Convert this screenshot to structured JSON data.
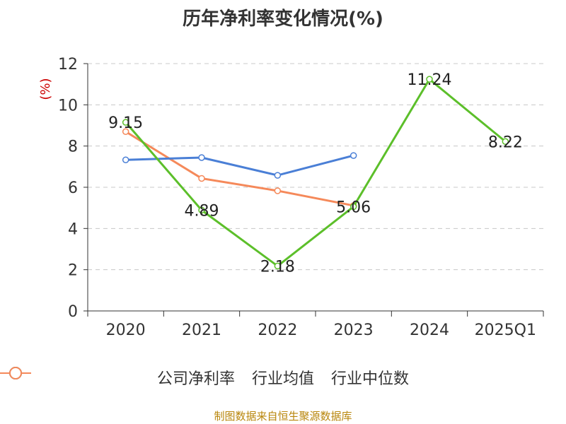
{
  "chart_data": {
    "type": "line",
    "title": "历年净利率变化情况(%)",
    "ylabel": "(%)",
    "xlabel": "",
    "categories": [
      "2020",
      "2021",
      "2022",
      "2023",
      "2024",
      "2025Q1"
    ],
    "ylim": [
      0,
      12
    ],
    "yticks": [
      0,
      2,
      4,
      6,
      8,
      10,
      12
    ],
    "grid": true,
    "legend_position": "bottom",
    "series": [
      {
        "name": "公司净利率",
        "color": "#5cbf2a",
        "values": [
          9.15,
          4.89,
          2.18,
          5.06,
          11.24,
          8.22
        ],
        "labels": [
          "9.15",
          "4.89",
          "2.18",
          "5.06",
          "11.24",
          "8.22"
        ]
      },
      {
        "name": "行业均值",
        "color": "#4a7fd6",
        "values": [
          7.33,
          7.44,
          6.58,
          7.54,
          null,
          null
        ]
      },
      {
        "name": "行业中位数",
        "color": "#f5895a",
        "values": [
          8.7,
          6.43,
          5.83,
          5.11,
          null,
          null
        ]
      }
    ],
    "source": "制图数据来自恒生聚源数据库"
  }
}
